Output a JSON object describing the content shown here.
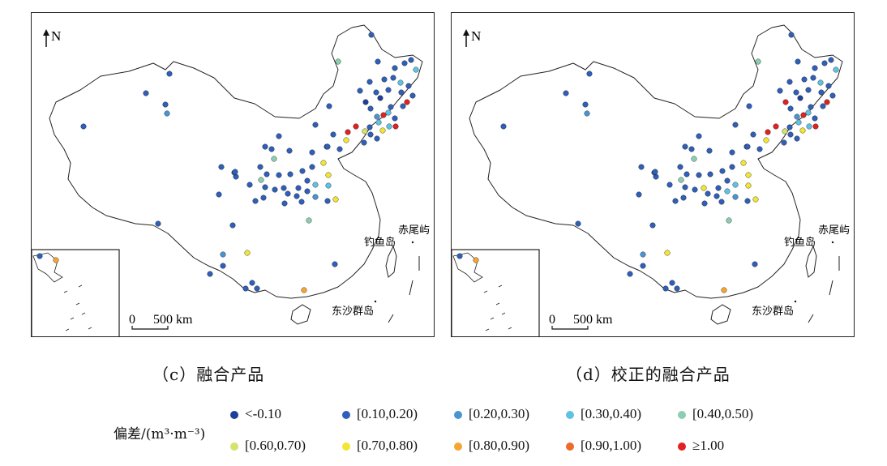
{
  "panels": [
    {
      "id": "c",
      "caption": "（c）融合产品",
      "north_label": "N",
      "scale_text": "0    500 km",
      "scale_zero": "0",
      "scale_dist": "500 km",
      "place_labels": {
        "chiwei": "赤尾屿",
        "diaoyu": "钓鱼岛",
        "dongsha": "东沙群岛"
      }
    },
    {
      "id": "d",
      "caption": "（d）校正的融合产品",
      "north_label": "N",
      "scale_text": "0    500 km",
      "scale_zero": "0",
      "scale_dist": "500 km",
      "place_labels": {
        "chiwei": "赤尾屿",
        "diaoyu": "钓鱼岛",
        "dongsha": "东沙群岛"
      }
    }
  ],
  "legend": {
    "title": "偏差/(m³·m⁻³)",
    "items": [
      {
        "label": "<-0.10",
        "color": "#1f3f9a"
      },
      {
        "label": "[0.10,0.20)",
        "color": "#2f5fb8"
      },
      {
        "label": "[0.20,0.30)",
        "color": "#4a94d0"
      },
      {
        "label": "[0.30,0.40)",
        "color": "#5ec3e3"
      },
      {
        "label": "[0.40,0.50)",
        "color": "#8ccfb0"
      },
      {
        "label": "[0.60,0.70)",
        "color": "#d6e26b"
      },
      {
        "label": "[0.70,0.80)",
        "color": "#f2e634"
      },
      {
        "label": "[0.80,0.90)",
        "color": "#f4a630"
      },
      {
        "label": "[0.90,1.00)",
        "color": "#ee6a28"
      },
      {
        "label": "≥1.00",
        "color": "#e02222"
      }
    ]
  }
}
